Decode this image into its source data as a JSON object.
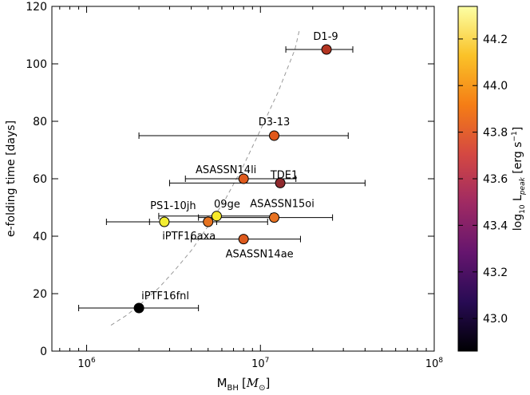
{
  "chart_data": {
    "type": "scatter",
    "xlabel_main": "M",
    "xlabel_sub": "BH",
    "xlabel_unit_open": "[",
    "xlabel_unit": "M",
    "xlabel_unit_sub": "⊙",
    "xlabel_unit_close": "]",
    "ylabel": "e-folding time [days]",
    "x_scale": "log",
    "xlim": [
      631000,
      100000000
    ],
    "ylim": [
      0,
      120
    ],
    "x_ticks": [
      {
        "value": 1000000,
        "base": "10",
        "exp": "6"
      },
      {
        "value": 10000000,
        "base": "10",
        "exp": "7"
      },
      {
        "value": 100000000,
        "base": "10",
        "exp": "8"
      }
    ],
    "y_ticks": [
      {
        "value": 0,
        "label": "0"
      },
      {
        "value": 20,
        "label": "20"
      },
      {
        "value": 40,
        "label": "40"
      },
      {
        "value": 60,
        "label": "60"
      },
      {
        "value": 80,
        "label": "80"
      },
      {
        "value": 100,
        "label": "100"
      },
      {
        "value": 120,
        "label": "120"
      }
    ],
    "grid": false,
    "colorbar": {
      "label_pre": "log",
      "label_sub": "10",
      "label_mid": " L",
      "label_sub2": "peak",
      "label_units": " [erg s",
      "label_exp": "−1",
      "label_end": "]",
      "min": 42.86,
      "max": 44.34,
      "colors": [
        "#000003",
        "#280b54",
        "#65156e",
        "#9f2a63",
        "#d44842",
        "#f57d15",
        "#fac228",
        "#fcffa4"
      ],
      "ticks": [
        {
          "value": 43.0,
          "label": "43.0"
        },
        {
          "value": 43.2,
          "label": "43.2"
        },
        {
          "value": 43.4,
          "label": "43.4"
        },
        {
          "value": 43.6,
          "label": "43.6"
        },
        {
          "value": 43.8,
          "label": "43.8"
        },
        {
          "value": 44.0,
          "label": "44.0"
        },
        {
          "value": 44.2,
          "label": "44.2"
        }
      ]
    },
    "reference_curve": {
      "style": "dashed",
      "color": "#999999",
      "x": [
        1380000,
        1700000,
        2100000,
        2600000,
        3200000,
        4000000,
        5000000,
        6300000,
        7900000,
        10000000,
        12600000,
        15800000,
        16800000
      ],
      "y": [
        9,
        12.5,
        17,
        22,
        28,
        35,
        43.5,
        53,
        64,
        77,
        90,
        105,
        112
      ]
    },
    "points": [
      {
        "name": "D1-9",
        "x": 24000000,
        "y": 105,
        "xerr": [
          14000000,
          34000000
        ],
        "color": "#b33522",
        "label_dx": -1,
        "label_dy": -17
      },
      {
        "name": "D3-13",
        "x": 12000000,
        "y": 75,
        "xerr": [
          2000000,
          32000000
        ],
        "color": "#e0581b",
        "label_dx": 0,
        "label_dy": -18
      },
      {
        "name": "ASASSN14li",
        "x": 8000000,
        "y": 60,
        "xerr": [
          3700000,
          16000000
        ],
        "color": "#df5a1c",
        "label_dx": -22,
        "label_dy": -12
      },
      {
        "name": "TDE1",
        "x": 13000000,
        "y": 58.5,
        "xerr": [
          3000000,
          40000000
        ],
        "color": "#8f2a2e",
        "label_dx": 5,
        "label_dy": -11
      },
      {
        "name": "ASASSN15oi",
        "x": 12000000,
        "y": 46.5,
        "xerr": [
          4400000,
          26000000
        ],
        "color": "#e87221",
        "label_dx": 10,
        "label_dy": -18
      },
      {
        "name": "09ge",
        "x": 5600000,
        "y": 47,
        "xerr": [
          2600000,
          11500000
        ],
        "color": "#f7e92a",
        "label_dx": 13,
        "label_dy": -16
      },
      {
        "name": "PS1-10jh",
        "x": 2800000,
        "y": 45,
        "xerr": [
          1300000,
          5600000
        ],
        "color": "#f3ee32",
        "label_dx": 11,
        "label_dy": -21
      },
      {
        "name": "iPTF16axa",
        "x": 5000000,
        "y": 45,
        "xerr": [
          2300000,
          11000000
        ],
        "color": "#e67320",
        "label_dx": -24,
        "label_dy": 17
      },
      {
        "name": "ASASSN14ae",
        "x": 8000000,
        "y": 39,
        "xerr": [
          4000000,
          17000000
        ],
        "color": "#dd5a1d",
        "label_dx": 20,
        "label_dy": 18
      },
      {
        "name": "iPTF16fnl",
        "x": 2000000,
        "y": 15,
        "xerr": [
          900000,
          4400000
        ],
        "color": "#000000",
        "label_dx": 33,
        "label_dy": -16
      }
    ]
  }
}
